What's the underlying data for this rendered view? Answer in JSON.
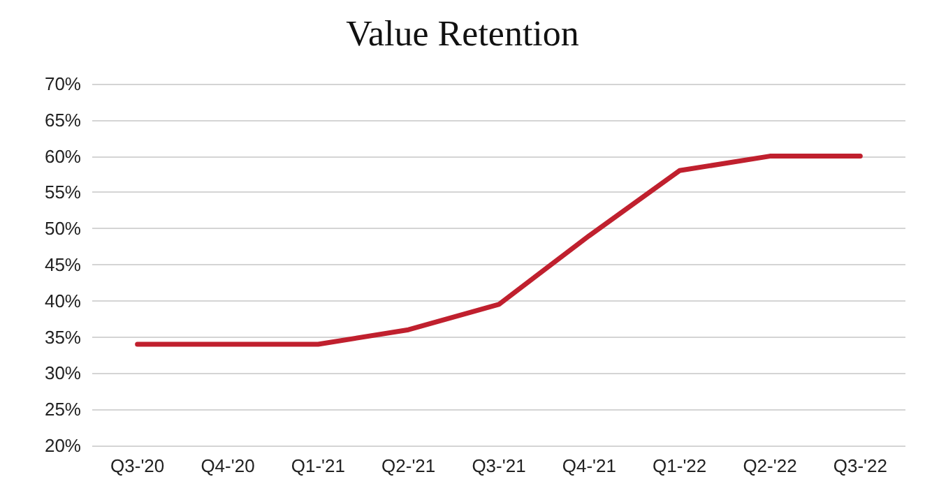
{
  "chart_data": {
    "type": "line",
    "title": "Value Retention",
    "categories": [
      "Q3-'20",
      "Q4-'20",
      "Q1-'21",
      "Q2-'21",
      "Q3-'21",
      "Q4-'21",
      "Q1-'22",
      "Q2-'22",
      "Q3-'22"
    ],
    "series": [
      {
        "color": "#c0202e",
        "values": [
          34,
          34,
          34,
          36,
          39.5,
          49,
          58,
          60,
          60
        ]
      }
    ],
    "ylim": [
      20,
      70
    ],
    "yticks": [
      {
        "value": 20,
        "label": "20%"
      },
      {
        "value": 25,
        "label": "25%"
      },
      {
        "value": 30,
        "label": "30%"
      },
      {
        "value": 35,
        "label": "35%"
      },
      {
        "value": 40,
        "label": "40%"
      },
      {
        "value": 45,
        "label": "45%"
      },
      {
        "value": 50,
        "label": "50%"
      },
      {
        "value": 55,
        "label": "55%"
      },
      {
        "value": 60,
        "label": "60%"
      },
      {
        "value": 65,
        "label": "65%"
      },
      {
        "value": 70,
        "label": "70%"
      }
    ],
    "grid": "y",
    "marker": "none",
    "line_style": "solid"
  }
}
